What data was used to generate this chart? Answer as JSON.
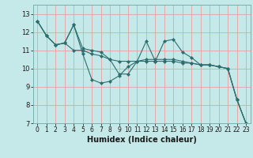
{
  "xlabel": "Humidex (Indice chaleur)",
  "background_color": "#c5e8e8",
  "grid_color": "#f0f0f0",
  "line_color": "#2d6e6e",
  "xlim": [
    -0.5,
    23.5
  ],
  "ylim": [
    7,
    13.5
  ],
  "yticks": [
    7,
    8,
    9,
    10,
    11,
    12,
    13
  ],
  "xticks": [
    0,
    1,
    2,
    3,
    4,
    5,
    6,
    7,
    8,
    9,
    10,
    11,
    12,
    13,
    14,
    15,
    16,
    17,
    18,
    19,
    20,
    21,
    22,
    23
  ],
  "series": [
    [
      12.6,
      11.8,
      11.3,
      11.4,
      12.4,
      10.8,
      9.4,
      9.2,
      9.3,
      9.6,
      10.1,
      10.4,
      11.5,
      10.4,
      11.5,
      11.6,
      10.9,
      10.6,
      10.2,
      10.2,
      10.1,
      10.0,
      8.3,
      7.0
    ],
    [
      12.6,
      11.8,
      11.3,
      11.4,
      12.4,
      11.1,
      11.0,
      10.9,
      10.5,
      9.7,
      9.7,
      10.4,
      10.5,
      10.5,
      10.5,
      10.5,
      10.4,
      10.3,
      10.2,
      10.2,
      10.1,
      10.0,
      8.3,
      7.0
    ],
    [
      12.6,
      11.8,
      11.3,
      11.4,
      11.0,
      11.0,
      10.8,
      10.7,
      10.5,
      10.4,
      10.4,
      10.4,
      10.4,
      10.4,
      10.4,
      10.4,
      10.3,
      10.3,
      10.2,
      10.2,
      10.1,
      10.0,
      8.3,
      7.0
    ]
  ]
}
